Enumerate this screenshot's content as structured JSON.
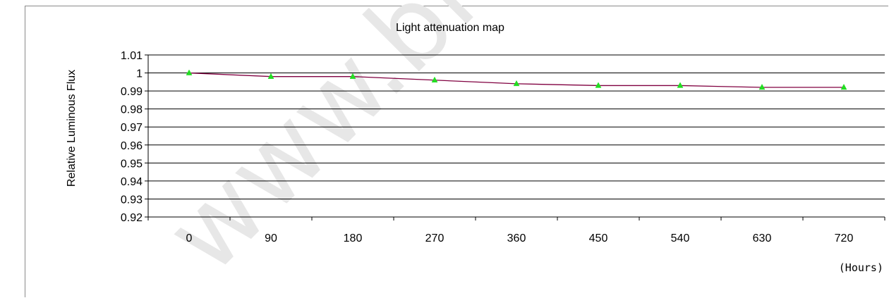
{
  "chart_data": {
    "type": "line",
    "title": "Light attenuation map",
    "ylabel": "Relative Luminous Flux",
    "xlabel": "(Hours)",
    "categories": [
      "0",
      "90",
      "180",
      "270",
      "360",
      "450",
      "540",
      "630",
      "720"
    ],
    "series": [
      {
        "values": [
          1.0,
          0.998,
          0.998,
          0.996,
          0.994,
          0.993,
          0.993,
          0.992,
          0.992
        ]
      }
    ],
    "ylim": [
      0.92,
      1.01
    ],
    "yticks": [
      "1.01",
      "1",
      "0.99",
      "0.98",
      "0.97",
      "0.96",
      "0.95",
      "0.94",
      "0.93",
      "0.92"
    ],
    "grid": true,
    "line_color": "#800040",
    "marker_color": "#22dd22",
    "marker": "triangle"
  },
  "watermark": "www.bree"
}
